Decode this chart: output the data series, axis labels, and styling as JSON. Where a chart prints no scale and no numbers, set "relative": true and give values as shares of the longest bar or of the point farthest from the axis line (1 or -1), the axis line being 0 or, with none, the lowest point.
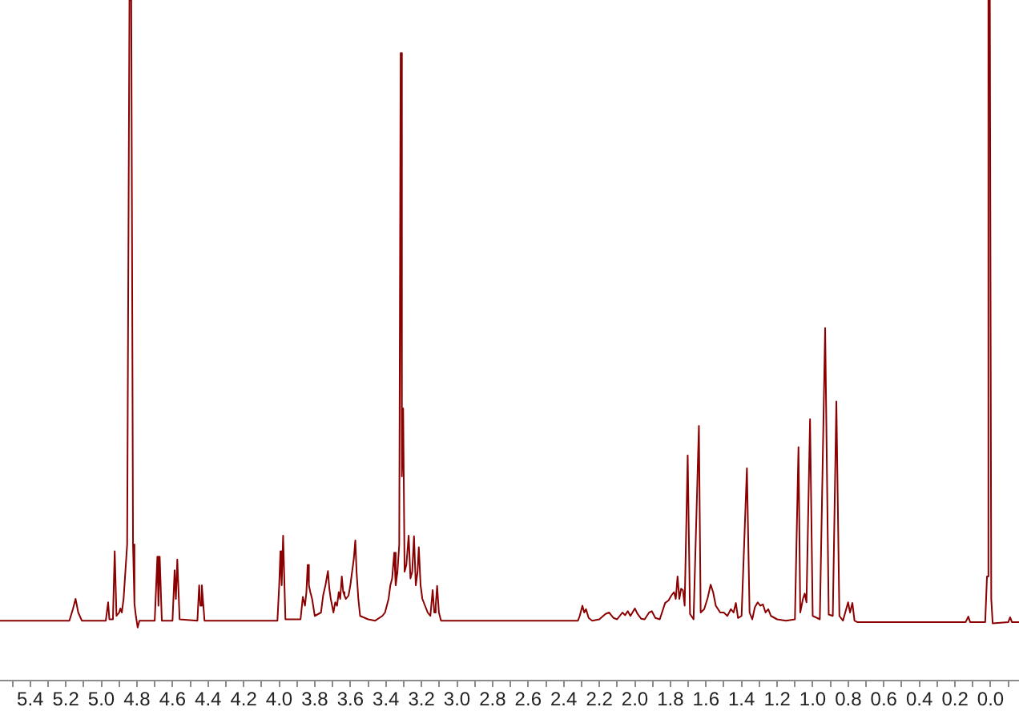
{
  "chart_data": {
    "type": "line",
    "relative": true,
    "color": "#8b0000",
    "marker": "none",
    "line_style": "solid",
    "xlim": [
      5.57,
      -0.16
    ],
    "xticks": [
      {
        "value": 5.5,
        "label": null
      },
      5.4,
      {
        "value": 5.3,
        "label": null
      },
      5.2,
      {
        "value": 5.1,
        "label": null
      },
      {
        "value": 5,
        "label": "5.0"
      },
      {
        "value": 4.9,
        "label": null
      },
      4.8,
      {
        "value": 4.7,
        "label": null
      },
      4.6,
      {
        "value": 4.5,
        "label": null
      },
      4.4,
      {
        "value": 4.3,
        "label": null
      },
      4.2,
      {
        "value": 4.1,
        "label": null
      },
      {
        "value": 4,
        "label": "4.0"
      },
      {
        "value": 3.9,
        "label": null
      },
      3.8,
      {
        "value": 3.7,
        "label": null
      },
      3.6,
      {
        "value": 3.5,
        "label": null
      },
      3.4,
      {
        "value": 3.3,
        "label": null
      },
      3.2,
      {
        "value": 3.1,
        "label": null
      },
      {
        "value": 3,
        "label": "3.0"
      },
      {
        "value": 2.9,
        "label": null
      },
      2.8,
      {
        "value": 2.7,
        "label": null
      },
      2.6,
      {
        "value": 2.5,
        "label": null
      },
      2.4,
      {
        "value": 2.3,
        "label": null
      },
      2.2,
      {
        "value": 2.1,
        "label": null
      },
      {
        "value": 2,
        "label": "2.0"
      },
      {
        "value": 1.9,
        "label": null
      },
      1.8,
      {
        "value": 1.7,
        "label": null
      },
      1.6,
      {
        "value": 1.5,
        "label": null
      },
      1.4,
      {
        "value": 1.3,
        "label": null
      },
      1.2,
      {
        "value": 1.1,
        "label": null
      },
      {
        "value": 1,
        "label": "1.0"
      },
      {
        "value": 0.9,
        "label": null
      },
      0.8,
      {
        "value": 0.7,
        "label": null
      },
      0.6,
      {
        "value": 0.5,
        "label": null
      },
      0.4,
      {
        "value": 0.3,
        "label": null
      },
      0.2,
      {
        "value": 0.1,
        "label": null
      },
      {
        "value": 0,
        "label": "0.0"
      },
      {
        "value": -0.1,
        "label": null
      }
    ],
    "x": [
      5.57,
      5.18,
      5.16,
      5.145,
      5.13,
      5.11,
      4.975,
      4.962,
      4.955,
      4.935,
      4.925,
      4.915,
      4.9,
      4.893,
      4.885,
      4.875,
      4.855,
      4.842,
      4.832,
      4.822,
      4.814,
      4.806,
      4.796,
      4.786,
      4.7,
      4.685,
      4.679,
      4.672,
      4.66,
      4.6,
      4.588,
      4.581,
      4.573,
      4.56,
      4.46,
      4.45,
      4.443,
      4.435,
      4.42,
      4.01,
      4.0,
      3.993,
      3.986,
      3.978,
      3.965,
      3.88,
      3.867,
      3.855,
      3.847,
      3.84,
      3.833,
      3.825,
      3.815,
      3.8,
      3.765,
      3.753,
      3.74,
      3.726,
      3.718,
      3.71,
      3.695,
      3.685,
      3.675,
      3.665,
      3.657,
      3.648,
      3.64,
      3.633,
      3.625,
      3.61,
      3.6,
      3.59,
      3.58,
      3.572,
      3.565,
      3.555,
      3.545,
      3.5,
      3.46,
      3.42,
      3.405,
      3.395,
      3.385,
      3.375,
      3.365,
      3.353,
      3.345,
      3.335,
      3.325,
      3.317,
      3.31,
      3.303,
      3.295,
      3.285,
      3.272,
      3.262,
      3.252,
      3.242,
      3.232,
      3.222,
      3.215,
      3.205,
      3.195,
      3.18,
      3.165,
      3.15,
      3.137,
      3.128,
      3.12,
      3.112,
      3.102,
      3.09,
      2.32,
      2.31,
      2.295,
      2.285,
      2.275,
      2.26,
      2.24,
      2.2,
      2.165,
      2.145,
      2.12,
      2.1,
      2.07,
      2.055,
      2.04,
      2.025,
      2.0,
      1.985,
      1.965,
      1.945,
      1.92,
      1.905,
      1.885,
      1.86,
      1.83,
      1.81,
      1.795,
      1.78,
      1.77,
      1.76,
      1.75,
      1.74,
      1.73,
      1.72,
      1.703,
      1.69,
      1.67,
      1.64,
      1.63,
      1.61,
      1.59,
      1.574,
      1.56,
      1.545,
      1.52,
      1.5,
      1.48,
      1.46,
      1.445,
      1.432,
      1.42,
      1.4,
      1.37,
      1.355,
      1.34,
      1.325,
      1.309,
      1.295,
      1.28,
      1.265,
      1.25,
      1.235,
      1.2,
      1.15,
      1.1,
      1.08,
      1.07,
      1.055,
      1.045,
      1.035,
      1.015,
      1.0,
      0.96,
      0.93,
      0.91,
      0.887,
      0.867,
      0.85,
      0.83,
      0.801,
      0.79,
      0.777,
      0.765,
      0.75,
      0.14,
      0.125,
      0.115,
      0.03,
      0.02,
      0.012,
      0.004,
      -0.004,
      -0.012,
      -0.1,
      -0.11,
      -0.12,
      -0.16
    ],
    "values": [
      0.088,
      0.088,
      0.105,
      0.12,
      0.1,
      0.088,
      0.088,
      0.115,
      0.09,
      0.09,
      0.19,
      0.095,
      0.1,
      0.106,
      0.1,
      0.12,
      0.2,
      1,
      1,
      0.2,
      0.113,
      0.095,
      0.078,
      0.088,
      0.088,
      0.182,
      0.11,
      0.182,
      0.088,
      0.088,
      0.162,
      0.12,
      0.178,
      0.09,
      0.088,
      0.14,
      0.11,
      0.14,
      0.088,
      0.088,
      0.14,
      0.19,
      0.14,
      0.213,
      0.09,
      0.09,
      0.123,
      0.11,
      0.13,
      0.17,
      0.14,
      0.13,
      0.12,
      0.095,
      0.1,
      0.125,
      0.14,
      0.161,
      0.135,
      0.12,
      0.1,
      0.115,
      0.11,
      0.13,
      0.12,
      0.153,
      0.13,
      0.125,
      0.12,
      0.125,
      0.14,
      0.16,
      0.18,
      0.206,
      0.16,
      0.12,
      0.095,
      0.09,
      0.088,
      0.095,
      0.1,
      0.11,
      0.12,
      0.14,
      0.15,
      0.188,
      0.14,
      0.16,
      0.2,
      0.922,
      0.3,
      0.4,
      0.16,
      0.17,
      0.213,
      0.15,
      0.16,
      0.212,
      0.14,
      0.16,
      0.196,
      0.14,
      0.12,
      0.11,
      0.1,
      0.095,
      0.133,
      0.1,
      0.11,
      0.139,
      0.1,
      0.088,
      0.088,
      0.095,
      0.11,
      0.1,
      0.105,
      0.092,
      0.088,
      0.09,
      0.098,
      0.1,
      0.092,
      0.09,
      0.1,
      0.096,
      0.102,
      0.095,
      0.106,
      0.098,
      0.091,
      0.09,
      0.1,
      0.102,
      0.092,
      0.09,
      0.114,
      0.118,
      0.125,
      0.13,
      0.12,
      0.153,
      0.12,
      0.135,
      0.133,
      0.11,
      0.331,
      0.098,
      0.09,
      0.374,
      0.1,
      0.105,
      0.122,
      0.141,
      0.13,
      0.11,
      0.1,
      0.1,
      0.095,
      0.105,
      0.1,
      0.114,
      0.092,
      0.095,
      0.312,
      0.1,
      0.09,
      0.108,
      0.115,
      0.11,
      0.112,
      0.1,
      0.105,
      0.095,
      0.09,
      0.088,
      0.09,
      0.343,
      0.1,
      0.12,
      0.128,
      0.115,
      0.384,
      0.095,
      0.09,
      0.518,
      0.097,
      0.095,
      0.41,
      0.095,
      0.088,
      0.115,
      0.1,
      0.114,
      0.088,
      0.086,
      0.086,
      0.094,
      0.086,
      0.086,
      0.153,
      1,
      1,
      0.12,
      0.084,
      0.086,
      0.093,
      0.086,
      0.086
    ]
  }
}
